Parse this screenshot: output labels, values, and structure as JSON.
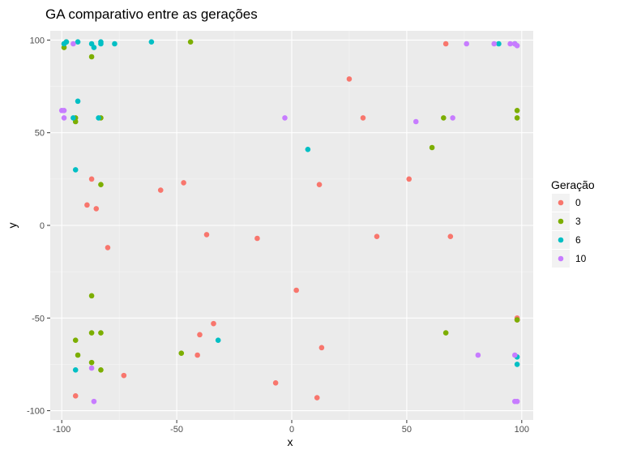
{
  "chart_data": {
    "type": "scatter",
    "title": "GA comparativo entre as gerações",
    "xlabel": "x",
    "ylabel": "y",
    "xlim": [
      -105,
      105
    ],
    "ylim": [
      -105,
      105
    ],
    "xticks": [
      -100,
      -50,
      0,
      50,
      100
    ],
    "yticks": [
      -100,
      -50,
      0,
      50,
      100
    ],
    "grid": true,
    "legend": {
      "title": "Geração",
      "position": "right"
    },
    "series": [
      {
        "name": "0",
        "color": "#F8766D",
        "points": [
          [
            -99,
            98
          ],
          [
            -87,
            25
          ],
          [
            -89,
            11
          ],
          [
            -85,
            9
          ],
          [
            -80,
            -12
          ],
          [
            -57,
            19
          ],
          [
            -47,
            23
          ],
          [
            -37,
            -5
          ],
          [
            -15,
            -7
          ],
          [
            -40,
            -59
          ],
          [
            -34,
            -53
          ],
          [
            -41,
            -70
          ],
          [
            -73,
            -81
          ],
          [
            -94,
            -92
          ],
          [
            -7,
            -85
          ],
          [
            11,
            -93
          ],
          [
            13,
            -66
          ],
          [
            2,
            -35
          ],
          [
            12,
            22
          ],
          [
            25,
            79
          ],
          [
            31,
            58
          ],
          [
            37,
            -6
          ],
          [
            51,
            25
          ],
          [
            67,
            98
          ],
          [
            69,
            -6
          ],
          [
            98,
            -50
          ],
          [
            98,
            -51
          ]
        ]
      },
      {
        "name": "3",
        "color": "#7CAE00",
        "points": [
          [
            -99,
            96
          ],
          [
            -98,
            99
          ],
          [
            -87,
            91
          ],
          [
            -44,
            99
          ],
          [
            -94,
            58
          ],
          [
            -94,
            56
          ],
          [
            -83,
            58
          ],
          [
            -83,
            22
          ],
          [
            -87,
            -38
          ],
          [
            -94,
            -62
          ],
          [
            -93,
            -70
          ],
          [
            -87,
            -58
          ],
          [
            -83,
            -58
          ],
          [
            -87,
            -74
          ],
          [
            -83,
            -78
          ],
          [
            -48,
            -69
          ],
          [
            61,
            42
          ],
          [
            66,
            58
          ],
          [
            67,
            -58
          ],
          [
            98,
            62
          ],
          [
            98,
            58
          ],
          [
            98,
            -51
          ]
        ]
      },
      {
        "name": "6",
        "color": "#00BFC4",
        "points": [
          [
            -99,
            98
          ],
          [
            -98,
            99
          ],
          [
            -93,
            99
          ],
          [
            -87,
            98
          ],
          [
            -86,
            96
          ],
          [
            -83,
            99
          ],
          [
            -83,
            98
          ],
          [
            -77,
            98
          ],
          [
            -61,
            99
          ],
          [
            -93,
            67
          ],
          [
            -95,
            58
          ],
          [
            -84,
            58
          ],
          [
            -94,
            30
          ],
          [
            -94,
            -78
          ],
          [
            7,
            41
          ],
          [
            -32,
            -62
          ],
          [
            90,
            98
          ],
          [
            97,
            98
          ],
          [
            98,
            -71
          ],
          [
            98,
            -75
          ]
        ]
      },
      {
        "name": "10",
        "color": "#C77CFF",
        "points": [
          [
            -100,
            62
          ],
          [
            -99,
            62
          ],
          [
            -99,
            58
          ],
          [
            -95,
            98
          ],
          [
            -87,
            -77
          ],
          [
            -86,
            -95
          ],
          [
            -3,
            58
          ],
          [
            54,
            56
          ],
          [
            70,
            58
          ],
          [
            76,
            98
          ],
          [
            88,
            98
          ],
          [
            95,
            98
          ],
          [
            97,
            98
          ],
          [
            98,
            97
          ],
          [
            81,
            -70
          ],
          [
            97,
            -70
          ],
          [
            97,
            -95
          ],
          [
            98,
            -95
          ]
        ]
      }
    ]
  }
}
